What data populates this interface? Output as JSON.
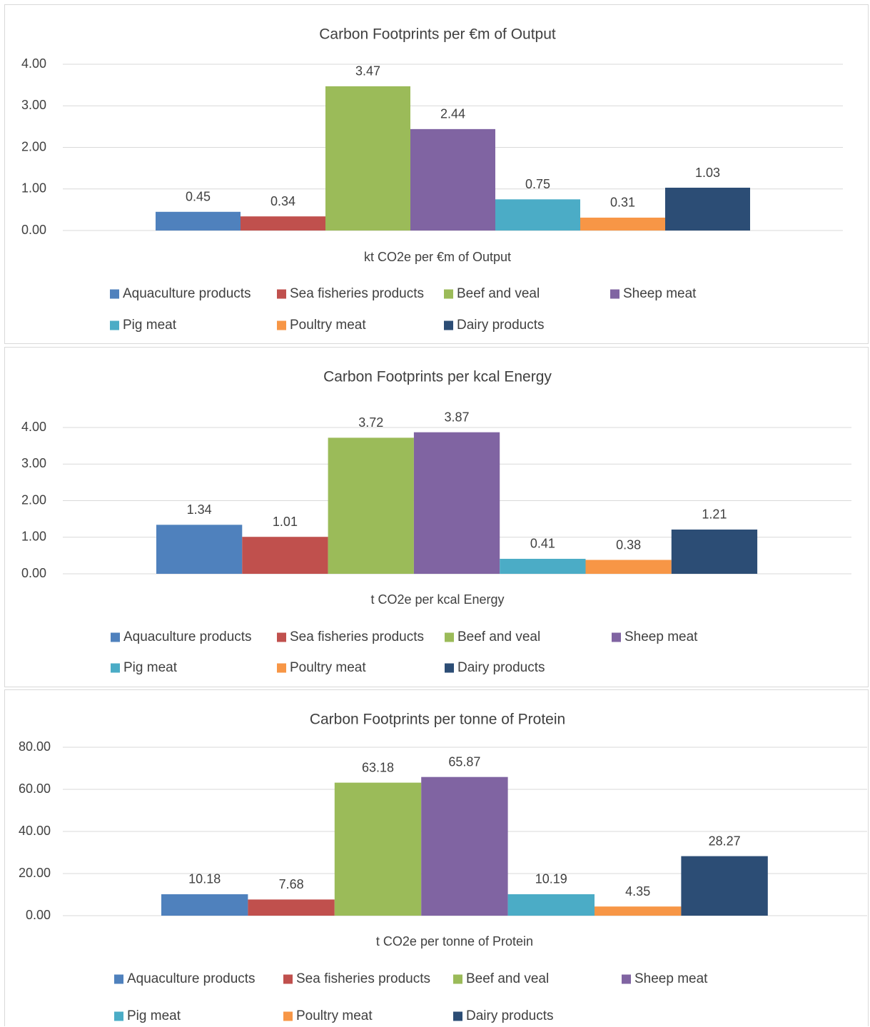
{
  "chart_data": [
    {
      "type": "bar",
      "title": "Carbon Footprints per €m of Output",
      "xlabel": "kt CO2e per €m of Output",
      "ylabel": "",
      "ylim": [
        0,
        4
      ],
      "y_ticks": [
        "0.00",
        "1.00",
        "2.00",
        "3.00",
        "4.00"
      ],
      "grid": true,
      "legend": "bottom",
      "categories": [
        "kt CO2e per €m of Output"
      ],
      "series": [
        {
          "name": "Aquaculture products",
          "color": "#4f81bd",
          "values": [
            0.45
          ],
          "label": "0.45"
        },
        {
          "name": "Sea fisheries products",
          "color": "#c0504d",
          "values": [
            0.34
          ],
          "label": "0.34"
        },
        {
          "name": "Beef and veal",
          "color": "#9bbb59",
          "values": [
            3.47
          ],
          "label": "3.47"
        },
        {
          "name": "Sheep meat",
          "color": "#8064a2",
          "values": [
            2.44
          ],
          "label": "2.44"
        },
        {
          "name": "Pig meat",
          "color": "#4bacc6",
          "values": [
            0.75
          ],
          "label": "0.75"
        },
        {
          "name": "Poultry meat",
          "color": "#f79646",
          "values": [
            0.31
          ],
          "label": "0.31"
        },
        {
          "name": "Dairy products",
          "color": "#2c4d75",
          "values": [
            1.03
          ],
          "label": "1.03"
        }
      ]
    },
    {
      "type": "bar",
      "title": "Carbon Footprints per kcal Energy",
      "xlabel": "t CO2e per kcal Energy",
      "ylabel": "",
      "ylim": [
        0,
        4.5
      ],
      "y_ticks": [
        "0.00",
        "1.00",
        "2.00",
        "3.00",
        "4.00"
      ],
      "grid": true,
      "legend": "bottom",
      "categories": [
        "t CO2e per kcal Energy"
      ],
      "series": [
        {
          "name": "Aquaculture products",
          "color": "#4f81bd",
          "values": [
            1.34
          ],
          "label": "1.34"
        },
        {
          "name": "Sea fisheries products",
          "color": "#c0504d",
          "values": [
            1.01
          ],
          "label": "1.01"
        },
        {
          "name": "Beef and veal",
          "color": "#9bbb59",
          "values": [
            3.72
          ],
          "label": "3.72"
        },
        {
          "name": "Sheep meat",
          "color": "#8064a2",
          "values": [
            3.87
          ],
          "label": "3.87"
        },
        {
          "name": "Pig meat",
          "color": "#4bacc6",
          "values": [
            0.41
          ],
          "label": "0.41"
        },
        {
          "name": "Poultry meat",
          "color": "#f79646",
          "values": [
            0.38
          ],
          "label": "0.38"
        },
        {
          "name": "Dairy products",
          "color": "#2c4d75",
          "values": [
            1.21
          ],
          "label": "1.21"
        }
      ]
    },
    {
      "type": "bar",
      "title": "Carbon Footprints per tonne of Protein",
      "xlabel": "t CO2e per tonne of Protein",
      "ylabel": "",
      "ylim": [
        0,
        80
      ],
      "y_ticks": [
        "0.00",
        "20.00",
        "40.00",
        "60.00",
        "80.00"
      ],
      "grid": true,
      "legend": "bottom",
      "categories": [
        "t CO2e per tonne of Protein"
      ],
      "series": [
        {
          "name": "Aquaculture products",
          "color": "#4f81bd",
          "values": [
            10.18
          ],
          "label": "10.18"
        },
        {
          "name": "Sea fisheries products",
          "color": "#c0504d",
          "values": [
            7.68
          ],
          "label": "7.68"
        },
        {
          "name": "Beef and veal",
          "color": "#9bbb59",
          "values": [
            63.18
          ],
          "label": "63.18"
        },
        {
          "name": "Sheep meat",
          "color": "#8064a2",
          "values": [
            65.87
          ],
          "label": "65.87"
        },
        {
          "name": "Pig meat",
          "color": "#4bacc6",
          "values": [
            10.19
          ],
          "label": "10.19"
        },
        {
          "name": "Poultry meat",
          "color": "#f79646",
          "values": [
            4.35
          ],
          "label": "4.35"
        },
        {
          "name": "Dairy products",
          "color": "#2c4d75",
          "values": [
            28.27
          ],
          "label": "28.27"
        }
      ]
    }
  ]
}
